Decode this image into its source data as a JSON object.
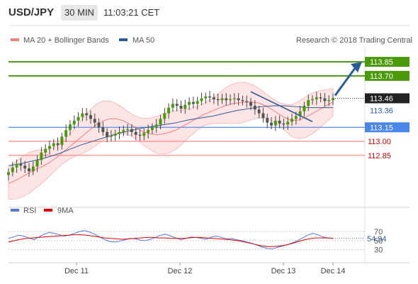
{
  "header": {
    "symbol": "USD/JPY",
    "timeframe": "30 MIN",
    "time": "11:03:21 CET"
  },
  "copyright": "Research © 2018 Trading Central",
  "colors": {
    "resistance": "#4a9a0a",
    "support": "#ff7f7f",
    "pivot": "#4a86e8",
    "ma50": "#2c5c97",
    "bollinger": "#fdd0d0",
    "arrow": "#2c5c97",
    "rsi": "#5577dd",
    "rsi_ma": "#dd0000",
    "candle": "#444444"
  },
  "chart_data": [
    {
      "type": "candlestick",
      "legend": [
        {
          "name": "MA 20 + Bollinger Bands",
          "color": "#f08080"
        },
        {
          "name": "MA 50",
          "color": "#2c5c97"
        }
      ],
      "x_ticks": [
        "Dec 11",
        "Dec 12",
        "Dec 13",
        "Dec 14"
      ],
      "ylim": [
        112.34,
        114.01
      ],
      "levels": [
        {
          "value": 113.85,
          "label": "113.85",
          "kind": "resistance"
        },
        {
          "value": 113.7,
          "label": "113.70",
          "kind": "resistance"
        },
        {
          "value": 113.15,
          "label": "113.15",
          "kind": "pivot"
        },
        {
          "value": 113.0,
          "label": "113.00",
          "kind": "support"
        },
        {
          "value": 112.85,
          "label": "112.85",
          "kind": "support"
        }
      ],
      "last_price": {
        "value": 113.46,
        "label": "113.46"
      },
      "ma50_last": {
        "value": 113.36,
        "label": "113.36"
      },
      "closes": [
        112.67,
        112.72,
        112.76,
        112.74,
        112.71,
        112.68,
        112.73,
        112.8,
        112.88,
        112.92,
        112.95,
        112.98,
        112.96,
        113.05,
        113.12,
        113.18,
        113.22,
        113.26,
        113.3,
        113.28,
        113.24,
        113.2,
        113.15,
        113.1,
        113.05,
        113.06,
        113.08,
        113.1,
        113.12,
        113.13,
        113.1,
        113.07,
        113.06,
        113.09,
        113.12,
        113.15,
        113.18,
        113.24,
        113.3,
        113.36,
        113.4,
        113.38,
        113.35,
        113.39,
        113.42,
        113.4,
        113.43,
        113.46,
        113.48,
        113.47,
        113.45,
        113.44,
        113.46,
        113.44,
        113.45,
        113.46,
        113.44,
        113.43,
        113.42,
        113.38,
        113.34,
        113.3,
        113.25,
        113.2,
        113.17,
        113.22,
        113.19,
        113.18,
        113.21,
        113.24,
        113.27,
        113.32,
        113.38,
        113.44,
        113.45,
        113.47,
        113.46,
        113.43,
        113.44,
        113.46
      ],
      "ma20": [
        112.55,
        112.58,
        112.62,
        112.66,
        112.7,
        112.73,
        112.77,
        112.82,
        112.88,
        112.94,
        113.0,
        113.06,
        113.12,
        113.18,
        113.22,
        113.24,
        113.24,
        113.22,
        113.18,
        113.14,
        113.1,
        113.08,
        113.07,
        113.08,
        113.1,
        113.13,
        113.17,
        113.21,
        113.25,
        113.29,
        113.32,
        113.35,
        113.38,
        113.4,
        113.41,
        113.42,
        113.42,
        113.41,
        113.38,
        113.34,
        113.29,
        113.25,
        113.22,
        113.23,
        113.26,
        113.3,
        113.34,
        113.38,
        113.42
      ],
      "ma50": [
        112.74,
        112.76,
        112.79,
        112.82,
        112.86,
        112.91,
        112.96,
        113.0,
        113.04,
        113.08,
        113.11,
        113.14,
        113.16,
        113.18,
        113.2,
        113.23,
        113.25,
        113.27,
        113.3,
        113.33,
        113.35,
        113.37,
        113.38,
        113.38,
        113.37,
        113.36,
        113.36,
        113.36
      ],
      "forecast_arrow": {
        "from": 113.46,
        "to": 113.85
      },
      "trendline": {
        "from": 113.53,
        "to": 113.21
      }
    },
    {
      "type": "line",
      "legend": [
        {
          "name": "RSI",
          "color": "#5577dd"
        },
        {
          "name": "9MA",
          "color": "#dd0000"
        }
      ],
      "ylim": [
        14,
        92
      ],
      "y_ticks": [
        70,
        50,
        30
      ],
      "last_value": {
        "value": 54.94,
        "label": "54.94"
      },
      "rsi": [
        55,
        58,
        62,
        60,
        56,
        52,
        58,
        64,
        68,
        66,
        63,
        60,
        62,
        66,
        70,
        72,
        69,
        64,
        58,
        52,
        48,
        47,
        49,
        52,
        55,
        54,
        51,
        50,
        53,
        57,
        62,
        64,
        60,
        56,
        52,
        55,
        58,
        57,
        55,
        53,
        58,
        60,
        57,
        54,
        55,
        52,
        50,
        47,
        44,
        40,
        36,
        33,
        32,
        35,
        38,
        41,
        45,
        50,
        56,
        62,
        66,
        63,
        58,
        56,
        55
      ],
      "rsi_ma": [
        47,
        50,
        53,
        55,
        56,
        57,
        58,
        59,
        60,
        61,
        62,
        63,
        63,
        62,
        60,
        58,
        56,
        55,
        54,
        53,
        54,
        55,
        56,
        57,
        57,
        56,
        56,
        55,
        55,
        55,
        56,
        57,
        57,
        56,
        55,
        54,
        53,
        52,
        50,
        48,
        45,
        42,
        39,
        37,
        37,
        38,
        40,
        43,
        47,
        51,
        54,
        56,
        56,
        56,
        55
      ]
    }
  ]
}
